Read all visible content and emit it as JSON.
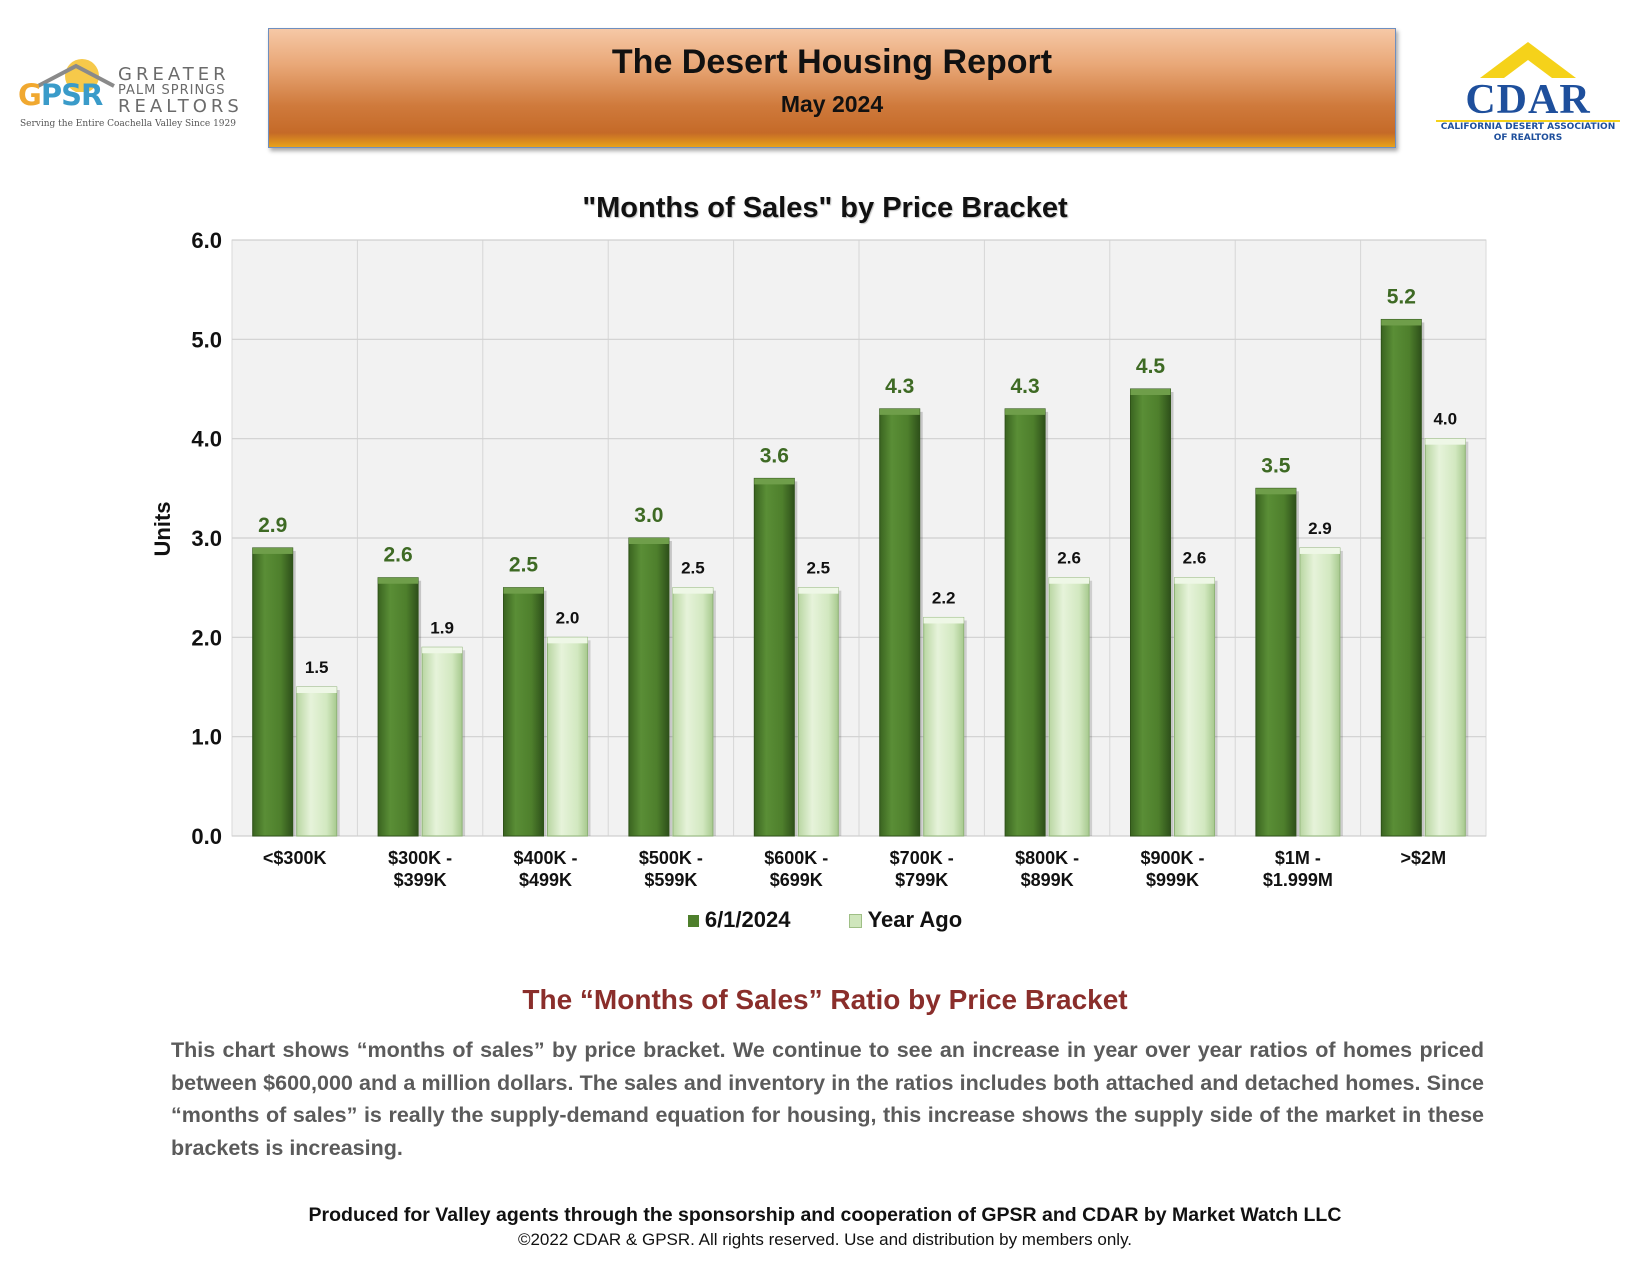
{
  "header": {
    "title": "The Desert Housing Report",
    "date": "May 2024"
  },
  "gpsr_logo": {
    "abbr_g": "G",
    "abbr_ps": "PS",
    "abbr_r": "R",
    "line1": "GREATER",
    "line2": "PALM SPRINGS",
    "line3": "REALTORS",
    "tagline": "Serving the Entire Coachella Valley Since 1929"
  },
  "cdar_logo": {
    "name": "CDAR",
    "subtitle1": "CALIFORNIA DESERT ASSOCIATION",
    "subtitle2": "OF REALTORS"
  },
  "colors": {
    "current": "#4e7f2c",
    "year_ago": "#cfe6bc",
    "current_label": "#3e6a24",
    "section_title": "#8a2e2b"
  },
  "chart_data": {
    "type": "bar",
    "title": "\"Months of Sales\" by Price Bracket",
    "xlabel": "",
    "ylabel": "Units",
    "ylim": [
      0,
      6
    ],
    "yticks": [
      "0.0",
      "1.0",
      "2.0",
      "3.0",
      "4.0",
      "5.0",
      "6.0"
    ],
    "grid": true,
    "legend_position": "bottom",
    "categories": [
      [
        "<$300K"
      ],
      [
        "$300K -",
        "$399K"
      ],
      [
        "$400K -",
        "$499K"
      ],
      [
        "$500K -",
        "$599K"
      ],
      [
        "$600K -",
        "$699K"
      ],
      [
        "$700K -",
        "$799K"
      ],
      [
        "$800K -",
        "$899K"
      ],
      [
        "$900K -",
        "$999K"
      ],
      [
        "$1M -",
        "$1.999M"
      ],
      [
        ">$2M"
      ]
    ],
    "series": [
      {
        "name": "6/1/2024",
        "values": [
          2.9,
          2.6,
          2.5,
          3.0,
          3.6,
          4.3,
          4.3,
          4.5,
          3.5,
          5.2
        ]
      },
      {
        "name": "Year Ago",
        "values": [
          1.5,
          1.9,
          2.0,
          2.5,
          2.5,
          2.2,
          2.6,
          2.6,
          2.9,
          4.0
        ]
      }
    ]
  },
  "section": {
    "title": "The “Months of Sales” Ratio by Price Bracket",
    "body": "This chart shows “months of sales” by price bracket. We continue to see an increase in year over year ratios of homes priced between $600,000 and a million dollars. The sales and inventory in the ratios includes both attached and detached homes. Since “months of sales” is really the supply-demand equation for housing, this increase shows the supply side of the market in these brackets is increasing."
  },
  "footer": {
    "line1": "Produced for Valley agents through the sponsorship and cooperation of GPSR and CDAR by Market Watch LLC",
    "line2": "©2022 CDAR & GPSR.  All rights reserved.  Use and distribution by members only."
  }
}
